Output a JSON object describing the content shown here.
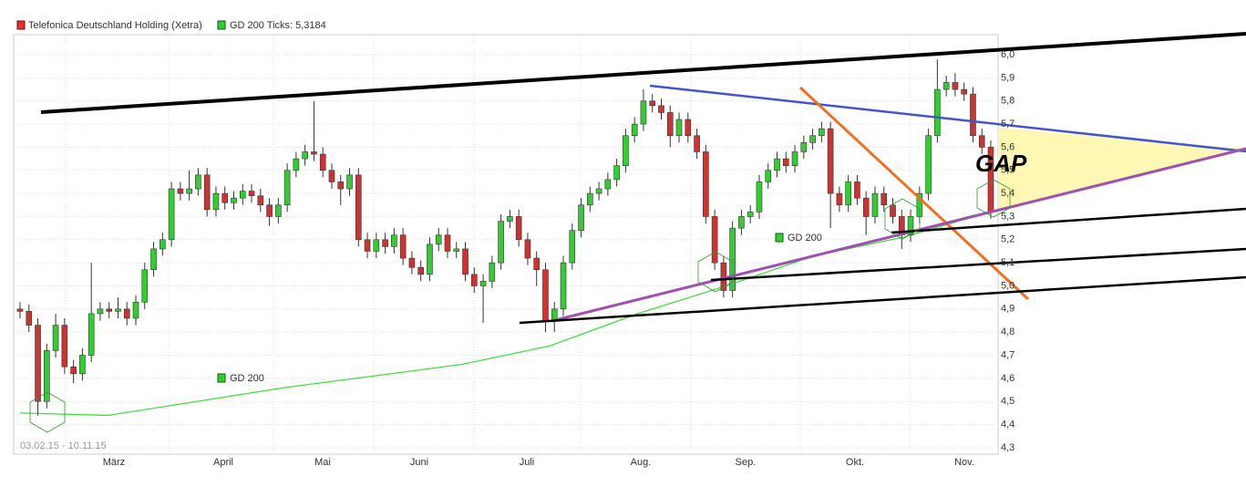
{
  "chart_data": {
    "type": "candlestick",
    "legend": [
      "Telefonica Deutschland Holding (Xetra)",
      "GD 200 Ticks: 5,3184"
    ],
    "up_color": "#33cc33",
    "down_color": "#cc3333",
    "date_range": "03.02.15 - 10.11.15",
    "months": [
      "März",
      "April",
      "Mai",
      "Juni",
      "Juli",
      "Aug.",
      "Sep.",
      "Okt.",
      "Nov."
    ],
    "ylim": [
      4.272,
      6.087
    ],
    "yticks": [
      {
        "value": 4.3,
        "label": "4,3"
      },
      {
        "value": 4.4,
        "label": "4,4"
      },
      {
        "value": 4.5,
        "label": "4,5"
      },
      {
        "value": 4.6,
        "label": "4,6"
      },
      {
        "value": 4.7,
        "label": "4,7"
      },
      {
        "value": 4.8,
        "label": "4,8"
      },
      {
        "value": 4.9,
        "label": "4,9"
      },
      {
        "value": 5.0,
        "label": "5,0"
      },
      {
        "value": 5.1,
        "label": "5,1"
      },
      {
        "value": 5.2,
        "label": "5,2"
      },
      {
        "value": 5.3,
        "label": "5,3"
      },
      {
        "value": 5.4,
        "label": "5,4"
      },
      {
        "value": 5.5,
        "label": "5,5"
      },
      {
        "value": 5.6,
        "label": "5,6"
      },
      {
        "value": 5.7,
        "label": "5,7"
      },
      {
        "value": 5.8,
        "label": "5,8"
      },
      {
        "value": 5.9,
        "label": "5,9"
      },
      {
        "value": 6.0,
        "label": "6,0"
      }
    ],
    "candles": [
      [
        4.9,
        4.93,
        4.86,
        4.89
      ],
      [
        4.89,
        4.92,
        4.8,
        4.83
      ],
      [
        4.83,
        4.86,
        4.44,
        4.5
      ],
      [
        4.5,
        4.75,
        4.47,
        4.72
      ],
      [
        4.72,
        4.88,
        4.69,
        4.83
      ],
      [
        4.83,
        4.86,
        4.62,
        4.65
      ],
      [
        4.65,
        4.68,
        4.58,
        4.62
      ],
      [
        4.62,
        4.73,
        4.59,
        4.7
      ],
      [
        4.7,
        5.1,
        4.67,
        4.88
      ],
      [
        4.88,
        4.93,
        4.85,
        4.9
      ],
      [
        4.9,
        4.93,
        4.86,
        4.89
      ],
      [
        4.89,
        4.95,
        4.86,
        4.9
      ],
      [
        4.9,
        4.93,
        4.83,
        4.86
      ],
      [
        4.86,
        4.96,
        4.83,
        4.93
      ],
      [
        4.93,
        5.1,
        4.9,
        5.07
      ],
      [
        5.07,
        5.19,
        5.04,
        5.16
      ],
      [
        5.16,
        5.23,
        5.13,
        5.2
      ],
      [
        5.2,
        5.45,
        5.17,
        5.42
      ],
      [
        5.42,
        5.45,
        5.37,
        5.4
      ],
      [
        5.4,
        5.5,
        5.37,
        5.42
      ],
      [
        5.42,
        5.51,
        5.39,
        5.48
      ],
      [
        5.48,
        5.51,
        5.3,
        5.33
      ],
      [
        5.33,
        5.43,
        5.3,
        5.4
      ],
      [
        5.4,
        5.43,
        5.33,
        5.36
      ],
      [
        5.36,
        5.41,
        5.33,
        5.38
      ],
      [
        5.38,
        5.44,
        5.35,
        5.41
      ],
      [
        5.41,
        5.44,
        5.36,
        5.39
      ],
      [
        5.39,
        5.42,
        5.32,
        5.35
      ],
      [
        5.35,
        5.38,
        5.26,
        5.3
      ],
      [
        5.3,
        5.38,
        5.27,
        5.35
      ],
      [
        5.35,
        5.53,
        5.32,
        5.5
      ],
      [
        5.5,
        5.58,
        5.47,
        5.55
      ],
      [
        5.55,
        5.61,
        5.52,
        5.58
      ],
      [
        5.58,
        5.8,
        5.54,
        5.57
      ],
      [
        5.57,
        5.6,
        5.47,
        5.5
      ],
      [
        5.5,
        5.53,
        5.42,
        5.45
      ],
      [
        5.45,
        5.48,
        5.35,
        5.42
      ],
      [
        5.42,
        5.51,
        5.39,
        5.48
      ],
      [
        5.48,
        5.51,
        5.17,
        5.2
      ],
      [
        5.2,
        5.23,
        5.12,
        5.15
      ],
      [
        5.15,
        5.23,
        5.12,
        5.2
      ],
      [
        5.2,
        5.23,
        5.14,
        5.17
      ],
      [
        5.17,
        5.25,
        5.14,
        5.22
      ],
      [
        5.22,
        5.25,
        5.09,
        5.12
      ],
      [
        5.12,
        5.15,
        5.05,
        5.08
      ],
      [
        5.08,
        5.11,
        5.02,
        5.05
      ],
      [
        5.05,
        5.21,
        5.02,
        5.18
      ],
      [
        5.18,
        5.25,
        5.15,
        5.22
      ],
      [
        5.22,
        5.25,
        5.12,
        5.15
      ],
      [
        5.15,
        5.19,
        5.12,
        5.16
      ],
      [
        5.16,
        5.19,
        5.02,
        5.05
      ],
      [
        5.05,
        5.08,
        4.97,
        5.0
      ],
      [
        5.0,
        5.05,
        4.84,
        5.02
      ],
      [
        5.02,
        5.13,
        4.99,
        5.1
      ],
      [
        5.1,
        5.31,
        5.07,
        5.28
      ],
      [
        5.28,
        5.33,
        5.25,
        5.3
      ],
      [
        5.3,
        5.33,
        5.17,
        5.2
      ],
      [
        5.2,
        5.23,
        5.09,
        5.12
      ],
      [
        5.12,
        5.15,
        5.0,
        5.07
      ],
      [
        5.07,
        5.1,
        4.8,
        4.85
      ],
      [
        4.85,
        4.93,
        4.8,
        4.9
      ],
      [
        4.9,
        5.13,
        4.87,
        5.1
      ],
      [
        5.1,
        5.27,
        5.07,
        5.24
      ],
      [
        5.24,
        5.38,
        5.21,
        5.35
      ],
      [
        5.35,
        5.43,
        5.32,
        5.4
      ],
      [
        5.4,
        5.45,
        5.37,
        5.42
      ],
      [
        5.42,
        5.49,
        5.39,
        5.46
      ],
      [
        5.46,
        5.55,
        5.43,
        5.52
      ],
      [
        5.52,
        5.68,
        5.49,
        5.65
      ],
      [
        5.65,
        5.73,
        5.62,
        5.7
      ],
      [
        5.7,
        5.85,
        5.67,
        5.8
      ],
      [
        5.8,
        5.83,
        5.75,
        5.78
      ],
      [
        5.78,
        5.81,
        5.72,
        5.75
      ],
      [
        5.75,
        5.78,
        5.6,
        5.65
      ],
      [
        5.65,
        5.75,
        5.62,
        5.72
      ],
      [
        5.72,
        5.75,
        5.62,
        5.65
      ],
      [
        5.65,
        5.68,
        5.55,
        5.58
      ],
      [
        5.58,
        5.61,
        5.27,
        5.3
      ],
      [
        5.3,
        5.33,
        5.07,
        5.1
      ],
      [
        5.1,
        5.13,
        4.95,
        4.98
      ],
      [
        4.98,
        5.28,
        4.95,
        5.25
      ],
      [
        5.25,
        5.33,
        5.22,
        5.3
      ],
      [
        5.3,
        5.35,
        5.27,
        5.32
      ],
      [
        5.32,
        5.48,
        5.29,
        5.45
      ],
      [
        5.45,
        5.53,
        5.42,
        5.5
      ],
      [
        5.5,
        5.58,
        5.47,
        5.55
      ],
      [
        5.55,
        5.58,
        5.49,
        5.52
      ],
      [
        5.52,
        5.61,
        5.49,
        5.58
      ],
      [
        5.58,
        5.65,
        5.55,
        5.62
      ],
      [
        5.62,
        5.68,
        5.59,
        5.65
      ],
      [
        5.65,
        5.71,
        5.62,
        5.68
      ],
      [
        5.68,
        5.71,
        5.25,
        5.4
      ],
      [
        5.4,
        5.43,
        5.32,
        5.35
      ],
      [
        5.35,
        5.48,
        5.32,
        5.45
      ],
      [
        5.45,
        5.48,
        5.35,
        5.38
      ],
      [
        5.38,
        5.41,
        5.22,
        5.3
      ],
      [
        5.3,
        5.43,
        5.27,
        5.4
      ],
      [
        5.4,
        5.43,
        5.32,
        5.35
      ],
      [
        5.35,
        5.38,
        5.27,
        5.3
      ],
      [
        5.3,
        5.33,
        5.16,
        5.22
      ],
      [
        5.22,
        5.33,
        5.19,
        5.3
      ],
      [
        5.3,
        5.43,
        5.27,
        5.4
      ],
      [
        5.4,
        5.68,
        5.37,
        5.65
      ],
      [
        5.65,
        5.98,
        5.62,
        5.85
      ],
      [
        5.85,
        5.91,
        5.82,
        5.88
      ],
      [
        5.88,
        5.92,
        5.82,
        5.85
      ],
      [
        5.85,
        5.88,
        5.8,
        5.83
      ],
      [
        5.83,
        5.86,
        5.62,
        5.65
      ],
      [
        5.65,
        5.68,
        5.57,
        5.6
      ],
      [
        5.6,
        5.63,
        5.29,
        5.32
      ]
    ],
    "gd200": {
      "name": "GD 200",
      "color": "#44dd44",
      "values": [
        4.45,
        4.44,
        4.5,
        4.56,
        4.61,
        4.66,
        4.74,
        4.88,
        5.0,
        5.13,
        5.21,
        5.32
      ]
    },
    "annotation": "GAP"
  }
}
